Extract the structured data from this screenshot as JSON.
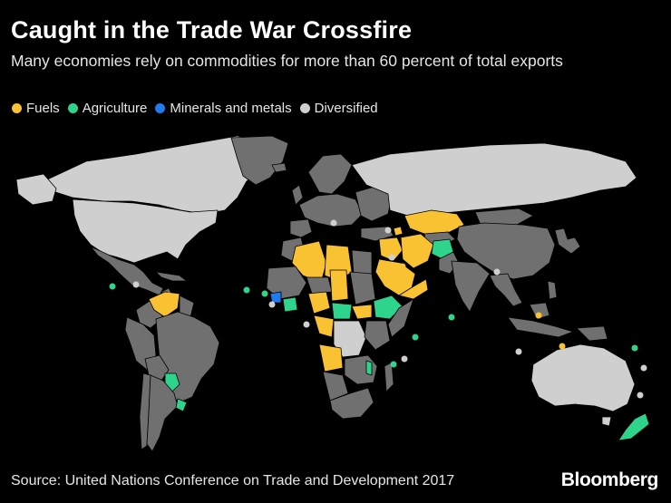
{
  "header": {
    "title": "Caught in the Trade War Crossfire",
    "subtitle": "Many economies rely on commodities for more than 60 percent of total exports"
  },
  "legend": [
    {
      "label": "Fuels",
      "color": "#f9c232",
      "category": "fuels"
    },
    {
      "label": "Agriculture",
      "color": "#2ed38c",
      "category": "agriculture"
    },
    {
      "label": "Minerals and metals",
      "color": "#1f7cf0",
      "category": "minerals"
    },
    {
      "label": "Diversified",
      "color": "#cfcfcf",
      "category": "diversified"
    }
  ],
  "colors": {
    "background": "#000000",
    "land_default": "#707070",
    "land_diversified": "#cfcfcf",
    "borders": "#000000"
  },
  "footer": {
    "source": "Source: United Nations Conference on Trade and Development 2017",
    "brand": "Bloomberg"
  }
}
